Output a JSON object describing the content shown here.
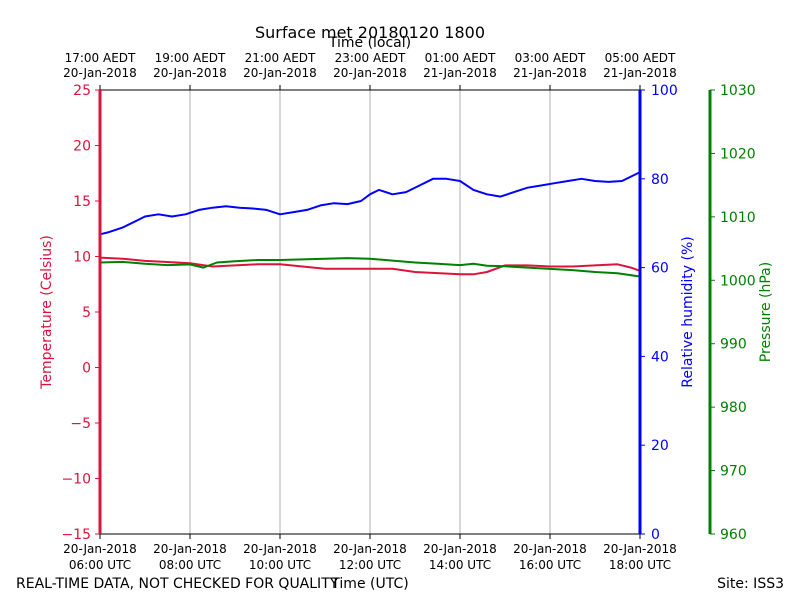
{
  "chart_data": {
    "type": "line",
    "title": "Surface met 20180120 1800",
    "top_xlabel": "Time (local)",
    "xlabel": "Time (UTC)",
    "footer_left": "REAL-TIME DATA, NOT CHECKED FOR QUALITY",
    "footer_right": "Site: ISS3",
    "x_hours": [
      6,
      18
    ],
    "grid_hours": [
      8,
      10,
      12,
      14,
      16
    ],
    "bottom_ticks": [
      {
        "hour": 6,
        "date": "20-Jan-2018",
        "time": "06:00 UTC"
      },
      {
        "hour": 8,
        "date": "20-Jan-2018",
        "time": "08:00 UTC"
      },
      {
        "hour": 10,
        "date": "20-Jan-2018",
        "time": "10:00 UTC"
      },
      {
        "hour": 12,
        "date": "20-Jan-2018",
        "time": "12:00 UTC"
      },
      {
        "hour": 14,
        "date": "20-Jan-2018",
        "time": "14:00 UTC"
      },
      {
        "hour": 16,
        "date": "20-Jan-2018",
        "time": "16:00 UTC"
      },
      {
        "hour": 18,
        "date": "20-Jan-2018",
        "time": "18:00 UTC"
      }
    ],
    "top_ticks": [
      {
        "hour": 6,
        "time": "17:00 AEDT",
        "date": "20-Jan-2018"
      },
      {
        "hour": 8,
        "time": "19:00 AEDT",
        "date": "20-Jan-2018"
      },
      {
        "hour": 10,
        "time": "21:00 AEDT",
        "date": "20-Jan-2018"
      },
      {
        "hour": 12,
        "time": "23:00 AEDT",
        "date": "20-Jan-2018"
      },
      {
        "hour": 14,
        "time": "01:00 AEDT",
        "date": "21-Jan-2018"
      },
      {
        "hour": 16,
        "time": "03:00 AEDT",
        "date": "21-Jan-2018"
      },
      {
        "hour": 18,
        "time": "05:00 AEDT",
        "date": "21-Jan-2018"
      }
    ],
    "axes": {
      "temperature": {
        "label": "Temperature (Celsius)",
        "color": "#dc143c",
        "ylim": [
          -15,
          25
        ],
        "ticks": [
          -15,
          -10,
          -5,
          0,
          5,
          10,
          15,
          20,
          25
        ],
        "tick_labels": [
          "−15",
          "−10",
          "−5",
          "0",
          "5",
          "10",
          "15",
          "20",
          "25"
        ]
      },
      "humidity": {
        "label": "Relative humidity (%)",
        "color": "#0000ff",
        "ylim": [
          0,
          100
        ],
        "ticks": [
          0,
          20,
          40,
          60,
          80,
          100
        ],
        "tick_labels": [
          "0",
          "20",
          "40",
          "60",
          "80",
          "100"
        ]
      },
      "pressure": {
        "label": "Pressure (hPa)",
        "color": "#008000",
        "ylim": [
          960,
          1030
        ],
        "ticks": [
          960,
          970,
          980,
          990,
          1000,
          1010,
          1020,
          1030
        ],
        "tick_labels": [
          "960",
          "970",
          "980",
          "990",
          "1000",
          "1010",
          "1020",
          "1030"
        ]
      }
    },
    "series": [
      {
        "name": "Temperature",
        "axis": "temperature",
        "color": "#dc143c",
        "x": [
          6.0,
          6.5,
          7.0,
          7.5,
          8.0,
          8.5,
          9.0,
          9.5,
          10.0,
          10.5,
          11.0,
          11.5,
          12.0,
          12.5,
          13.0,
          13.5,
          14.0,
          14.3,
          14.6,
          15.0,
          15.5,
          16.0,
          16.5,
          17.0,
          17.5,
          17.8,
          18.0
        ],
        "values": [
          9.9,
          9.8,
          9.6,
          9.5,
          9.4,
          9.1,
          9.2,
          9.3,
          9.3,
          9.1,
          8.9,
          8.9,
          8.9,
          8.9,
          8.6,
          8.5,
          8.4,
          8.4,
          8.6,
          9.2,
          9.2,
          9.1,
          9.1,
          9.2,
          9.3,
          9.0,
          8.7
        ]
      },
      {
        "name": "Relative humidity",
        "axis": "humidity",
        "color": "#0000ff",
        "x": [
          6.0,
          6.2,
          6.5,
          6.8,
          7.0,
          7.3,
          7.6,
          7.9,
          8.2,
          8.5,
          8.8,
          9.1,
          9.4,
          9.7,
          10.0,
          10.3,
          10.6,
          10.9,
          11.2,
          11.5,
          11.8,
          12.0,
          12.2,
          12.5,
          12.8,
          13.1,
          13.4,
          13.7,
          14.0,
          14.3,
          14.6,
          14.9,
          15.2,
          15.5,
          15.8,
          16.1,
          16.4,
          16.7,
          17.0,
          17.3,
          17.6,
          17.9,
          18.0
        ],
        "values": [
          67.5,
          68,
          69,
          70.5,
          71.5,
          72,
          71.5,
          72,
          73,
          73.5,
          73.8,
          73.5,
          73.3,
          73,
          72,
          72.5,
          73,
          74,
          74.5,
          74.3,
          75,
          76.5,
          77.5,
          76.5,
          77,
          78.5,
          80,
          80,
          79.5,
          77.5,
          76.5,
          76,
          77,
          78,
          78.5,
          79,
          79.5,
          80,
          79.5,
          79.3,
          79.5,
          81,
          81.5
        ]
      },
      {
        "name": "Pressure",
        "axis": "pressure",
        "color": "#008000",
        "x": [
          6.0,
          6.5,
          7.0,
          7.5,
          8.0,
          8.3,
          8.6,
          9.0,
          9.5,
          10.0,
          10.5,
          11.0,
          11.5,
          12.0,
          12.5,
          13.0,
          13.5,
          14.0,
          14.3,
          14.6,
          15.0,
          15.5,
          16.0,
          16.5,
          17.0,
          17.5,
          18.0
        ],
        "values": [
          1002.8,
          1002.9,
          1002.6,
          1002.4,
          1002.5,
          1002.0,
          1002.8,
          1003.0,
          1003.2,
          1003.2,
          1003.3,
          1003.4,
          1003.5,
          1003.4,
          1003.1,
          1002.8,
          1002.6,
          1002.4,
          1002.6,
          1002.3,
          1002.2,
          1002.0,
          1001.8,
          1001.6,
          1001.3,
          1001.1,
          1000.6
        ]
      }
    ]
  }
}
